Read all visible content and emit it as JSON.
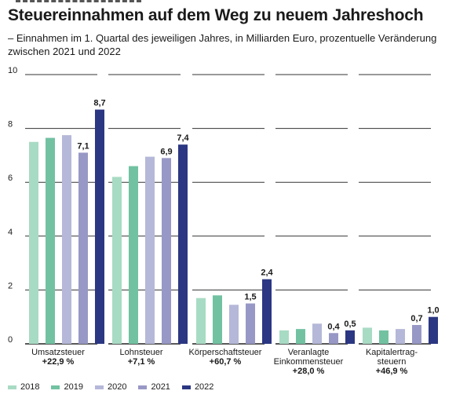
{
  "title": "Steuereinnahmen auf dem Weg zu neuem Jahreshoch",
  "subtitle": "– Einnahmen im 1. Quartal des jeweiligen Jahres, in Milliarden Euro, prozentuelle Veränderung zwischen 2021 und 2022",
  "chart_data": {
    "type": "bar",
    "ylim": [
      0,
      10
    ],
    "yticks": [
      0,
      2,
      4,
      6,
      8,
      10
    ],
    "grid": true,
    "legend_position": "bottom-left",
    "series": [
      {
        "name": "2018",
        "color": "#a8dbc4",
        "values": [
          7.5,
          6.2,
          1.7,
          0.5,
          0.6
        ]
      },
      {
        "name": "2019",
        "color": "#72c2a2",
        "values": [
          7.65,
          6.6,
          1.8,
          0.55,
          0.5
        ]
      },
      {
        "name": "2020",
        "color": "#b5b8d8",
        "values": [
          7.75,
          6.95,
          1.45,
          0.75,
          0.55
        ]
      },
      {
        "name": "2021",
        "color": "#9898c6",
        "values": [
          7.1,
          6.9,
          1.5,
          0.4,
          0.7
        ]
      },
      {
        "name": "2022",
        "color": "#2b3782",
        "values": [
          8.7,
          7.4,
          2.4,
          0.5,
          1.0
        ]
      }
    ],
    "categories": [
      {
        "lines": [
          "Umsatzsteuer"
        ],
        "change": "+22,9 %"
      },
      {
        "lines": [
          "Lohnsteuer"
        ],
        "change": "+7,1 %"
      },
      {
        "lines": [
          "Körperschaftsteuer"
        ],
        "change": "+60,7 %"
      },
      {
        "lines": [
          "Veranlagte",
          "Einkommensteuer"
        ],
        "change": "+28,0 %"
      },
      {
        "lines": [
          "Kapitalertrag-",
          "steuern"
        ],
        "change": "+46,9 %"
      }
    ],
    "value_labels": [
      [
        {
          "series": 3,
          "text": "7,1"
        },
        {
          "series": 4,
          "text": "8,7"
        }
      ],
      [
        {
          "series": 3,
          "text": "6,9"
        },
        {
          "series": 4,
          "text": "7,4"
        }
      ],
      [
        {
          "series": 3,
          "text": "1,5"
        },
        {
          "series": 4,
          "text": "2,4"
        }
      ],
      [
        {
          "series": 3,
          "text": "0,4"
        },
        {
          "series": 4,
          "text": "0,5"
        }
      ],
      [
        {
          "series": 3,
          "text": "0,7"
        },
        {
          "series": 4,
          "text": "1,0"
        }
      ]
    ]
  }
}
